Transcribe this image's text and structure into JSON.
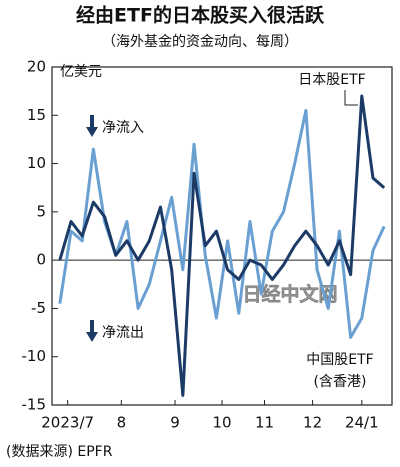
{
  "chart_data": {
    "type": "line",
    "title": "经由ETF的日本股买入很活跃",
    "subtitle": "（海外基金的资金动向、每周）",
    "y_unit": "亿美元",
    "annotations": {
      "inflow": "净流入",
      "outflow": "净流出",
      "china_note": "(含香港)",
      "source": "(数据来源) EPFR",
      "watermark": "日经中文网"
    },
    "x": [
      0,
      1,
      2,
      3,
      4,
      5,
      6,
      7,
      8,
      9,
      10,
      11,
      12,
      13,
      14,
      15,
      16,
      17,
      18,
      19,
      20,
      21,
      22,
      23,
      24,
      25,
      26,
      27,
      28,
      29
    ],
    "xlim": [
      -0.7,
      29.7
    ],
    "xticks": [
      {
        "value": 0.7,
        "label": "2023/7"
      },
      {
        "value": 5.5,
        "label": "8"
      },
      {
        "value": 10.3,
        "label": "9"
      },
      {
        "value": 14.5,
        "label": "10"
      },
      {
        "value": 18.3,
        "label": "11"
      },
      {
        "value": 22.6,
        "label": "12"
      },
      {
        "value": 27,
        "label": "24/1"
      }
    ],
    "ylim": [
      -15,
      20
    ],
    "yticks": [
      -15,
      -10,
      -5,
      0,
      5,
      10,
      15,
      20
    ],
    "series": [
      {
        "name": "中国股ETF",
        "color": "#6a9fd2",
        "values": [
          -4.5,
          3,
          2,
          11.5,
          4,
          0.5,
          4,
          -5,
          -2.5,
          2,
          6.5,
          -1,
          12,
          0.5,
          -6,
          2,
          -5.5,
          4,
          -3.5,
          3,
          5,
          10,
          15.5,
          -1,
          -5,
          3,
          -8,
          -6,
          1,
          3.5
        ]
      },
      {
        "name": "日本股ETF",
        "color": "#1b3a66",
        "values": [
          0,
          4,
          2.5,
          6,
          4.5,
          0.5,
          2,
          0,
          2,
          5.5,
          -1,
          -14,
          9,
          1.5,
          3,
          -1,
          -2,
          0,
          -0.5,
          -2,
          -0.5,
          1.5,
          3,
          1.5,
          -0.5,
          2,
          -1.5,
          17,
          8.5,
          7.5
        ]
      }
    ]
  }
}
